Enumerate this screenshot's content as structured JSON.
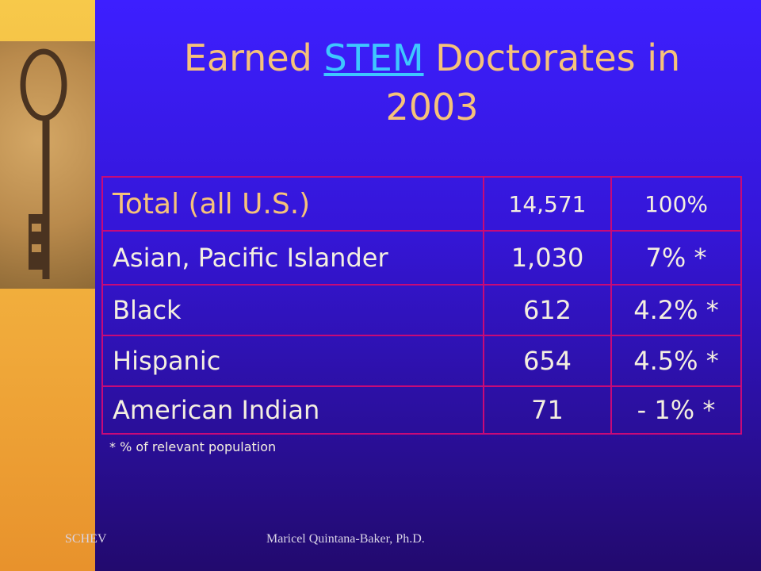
{
  "title": {
    "before": "Earned",
    "link": "STEM",
    "after": "Doctorates in 2003"
  },
  "table": {
    "rows": [
      [
        "Total (all U.S.)",
        "14,571",
        "100%"
      ],
      [
        "Asian, Pacific Islander",
        "1,030",
        "7% *"
      ],
      [
        "Black",
        "612",
        "4.2% *"
      ],
      [
        "Hispanic",
        "654",
        "4.5% *"
      ],
      [
        "American Indian",
        "71",
        "- 1% *"
      ]
    ]
  },
  "footnote": "* % of relevant population",
  "footer": {
    "left": "SCHEV",
    "center": "Maricel Quintana-Baker, Ph.D."
  }
}
